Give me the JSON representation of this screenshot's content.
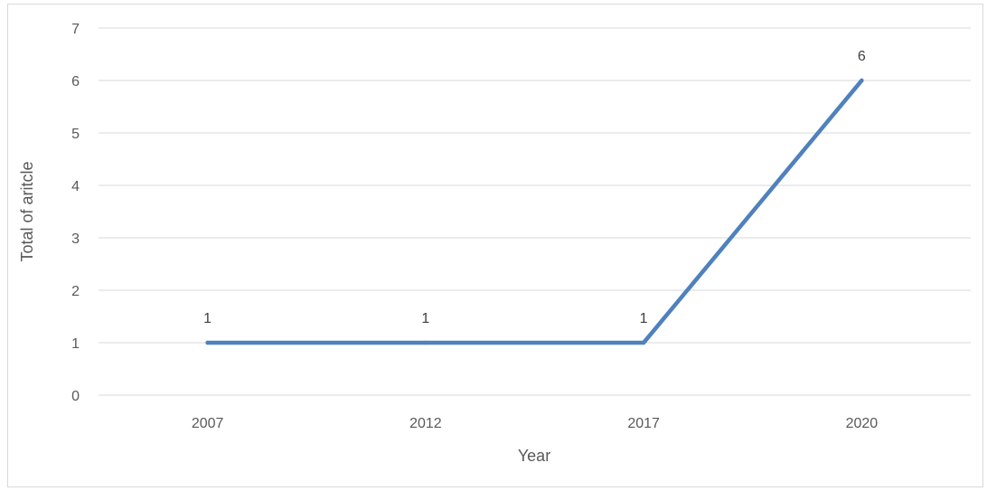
{
  "chart_data": {
    "type": "line",
    "categories": [
      "2007",
      "2012",
      "2017",
      "2020"
    ],
    "series": [
      {
        "values": [
          1,
          1,
          1,
          6
        ]
      }
    ],
    "data_labels": [
      "1",
      "1",
      "1",
      "6"
    ],
    "xlabel": "Year",
    "ylabel": "Total of aritcle",
    "ylim": [
      0,
      7
    ],
    "yticks": [
      "0",
      "1",
      "2",
      "3",
      "4",
      "5",
      "6",
      "7"
    ],
    "grid": true,
    "legend": "none",
    "line_color": "#4f81bd",
    "grid_color": "#d9d9d9"
  }
}
